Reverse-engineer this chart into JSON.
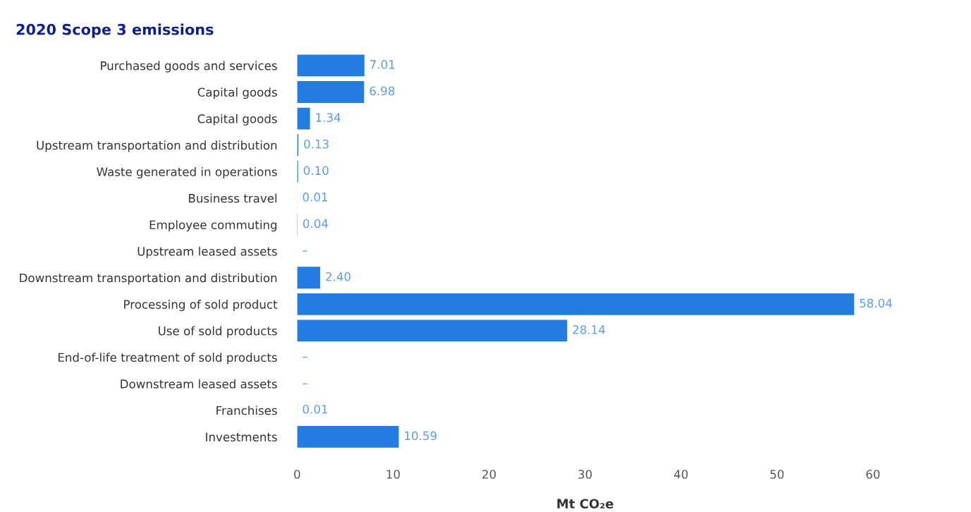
{
  "chart_data": {
    "type": "bar",
    "orientation": "horizontal",
    "title": "2020 Scope 3 emissions",
    "xlabel": "Mt CO₂e",
    "categories": [
      "Purchased goods and services",
      "Capital goods",
      "Capital goods",
      "Upstream transportation and distribution",
      "Waste generated in operations",
      "Business travel",
      "Employee commuting",
      "Upstream leased assets",
      "Downstream transportation and distribution",
      "Processing of sold product",
      "Use of sold products",
      "End-of-life treatment of sold products",
      "Downstream leased assets",
      "Franchises",
      "Investments"
    ],
    "values": [
      7.01,
      6.98,
      1.34,
      0.13,
      0.1,
      0.01,
      0.04,
      null,
      2.4,
      58.04,
      28.14,
      null,
      null,
      0.01,
      10.59
    ],
    "value_labels": [
      "7.01",
      "6.98",
      "1.34",
      "0.13",
      "0.10",
      "0.01",
      "0.04",
      "–",
      "2.40",
      "58.04",
      "28.14",
      "–",
      "–",
      "0.01",
      "10.59"
    ],
    "color": "#237de0",
    "xlim": [
      0,
      60
    ],
    "xticks": [
      0,
      10,
      20,
      30,
      40,
      50,
      60
    ],
    "grid": false
  }
}
